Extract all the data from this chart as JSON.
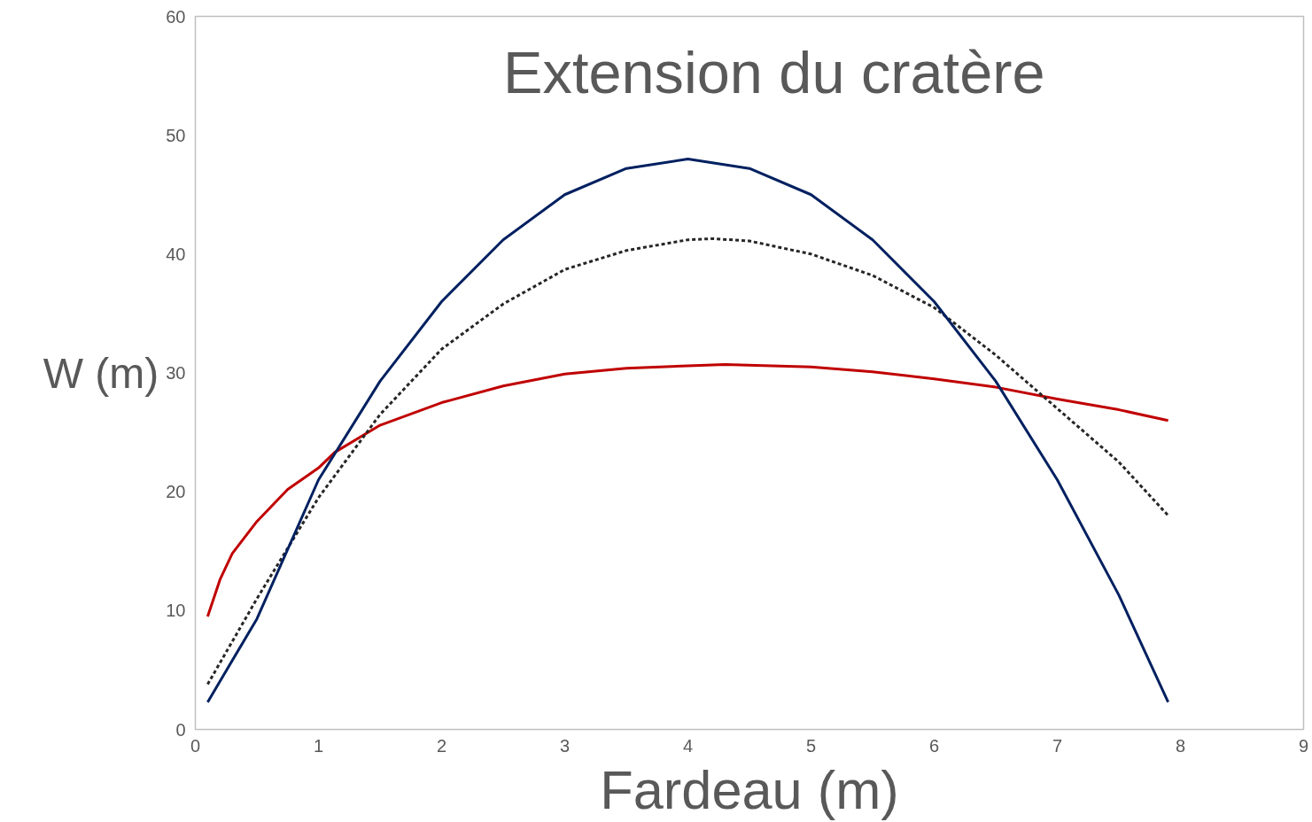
{
  "chart_data": {
    "type": "line",
    "title": "Extension du cratère",
    "xlabel": "Fardeau (m)",
    "ylabel": "W (m)",
    "xlim": [
      0,
      9
    ],
    "ylim": [
      0,
      60
    ],
    "xticks": [
      0,
      1,
      2,
      3,
      4,
      5,
      6,
      7,
      8,
      9
    ],
    "yticks": [
      0,
      10,
      20,
      30,
      40,
      50,
      60
    ],
    "grid": false,
    "series": [
      {
        "color": "#c00000",
        "line_style": "solid",
        "x": [
          0.1,
          0.2,
          0.3,
          0.5,
          0.75,
          1,
          1.13,
          1.5,
          2,
          2.5,
          3,
          3.5,
          4,
          4.3,
          5,
          5.5,
          6,
          6.5,
          7,
          7.5,
          7.9
        ],
        "values": [
          9.5,
          12.6,
          14.8,
          17.5,
          20.2,
          22,
          23.3,
          25.6,
          27.5,
          28.9,
          29.9,
          30.4,
          30.6,
          30.7,
          30.5,
          30.1,
          29.5,
          28.8,
          27.8,
          26.9,
          26
        ]
      },
      {
        "color": "#262626",
        "line_style": "dashed",
        "x": [
          0.1,
          0.5,
          1,
          1.5,
          2,
          2.5,
          3,
          3.5,
          4,
          4.2,
          4.5,
          5,
          5.5,
          6,
          6.5,
          7,
          7.5,
          7.9
        ],
        "values": [
          3.8,
          11,
          19.5,
          26.5,
          32,
          35.8,
          38.7,
          40.3,
          41.2,
          41.3,
          41.1,
          40,
          38.2,
          35.5,
          31.5,
          27,
          22.5,
          18
        ]
      },
      {
        "color": "#002060",
        "line_style": "solid",
        "x": [
          0.1,
          0.5,
          1,
          1.5,
          2,
          2.5,
          3,
          3.5,
          4,
          4.5,
          5,
          5.5,
          6,
          6.5,
          7,
          7.5,
          7.9
        ],
        "values": [
          2.3,
          9.3,
          21,
          29.3,
          36,
          41.2,
          45,
          47.2,
          48,
          47.2,
          45,
          41.2,
          36,
          29.3,
          21,
          11.3,
          2.3
        ]
      }
    ]
  }
}
